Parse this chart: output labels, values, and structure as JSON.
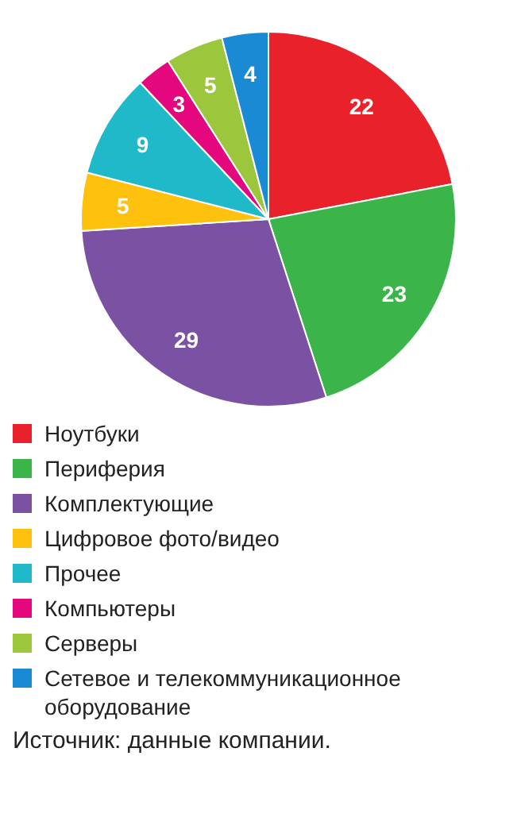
{
  "chart_data": {
    "type": "pie",
    "categories": [
      "Ноутбуки",
      "Периферия",
      "Комплектующие",
      "Цифровое фото/видео",
      "Прочее",
      "Компьютеры",
      "Серверы",
      "Сетевое и телекоммуникационное оборудование"
    ],
    "values": [
      22,
      23,
      29,
      5,
      9,
      3,
      5,
      4
    ],
    "colors": [
      "#e8212a",
      "#3bb54a",
      "#7b52a3",
      "#fdc10e",
      "#1fb9c9",
      "#e5077e",
      "#9cc63b",
      "#1a8ad4"
    ],
    "data_labels": true,
    "legend": "bottom",
    "annotations": [
      "Источник: данные компании."
    ]
  }
}
